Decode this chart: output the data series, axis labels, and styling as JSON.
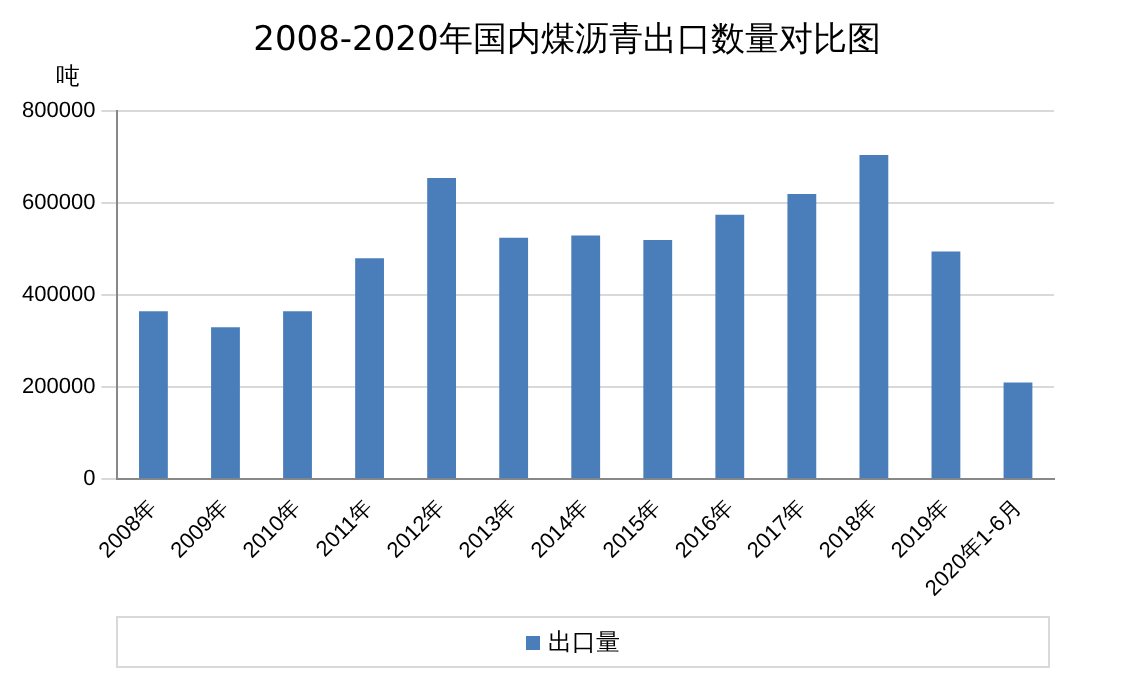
{
  "chart_data": {
    "type": "bar",
    "title": "2008-2020年国内煤沥青出口数量对比图",
    "ylabel": "吨",
    "categories": [
      "2008年",
      "2009年",
      "2010年",
      "2011年",
      "2012年",
      "2013年",
      "2014年",
      "2015年",
      "2016年",
      "2017年",
      "2018年",
      "2019年",
      "2020年1-6月"
    ],
    "series": [
      {
        "name": "出口量",
        "color": "#4a7ebb",
        "values": [
          365000,
          330000,
          365000,
          480000,
          655000,
          525000,
          530000,
          520000,
          575000,
          620000,
          705000,
          495000,
          210000
        ]
      }
    ],
    "ylim": [
      0,
      800000
    ],
    "yticks": [
      0,
      200000,
      400000,
      600000,
      800000
    ],
    "grid": "y",
    "legend": "bottom"
  }
}
